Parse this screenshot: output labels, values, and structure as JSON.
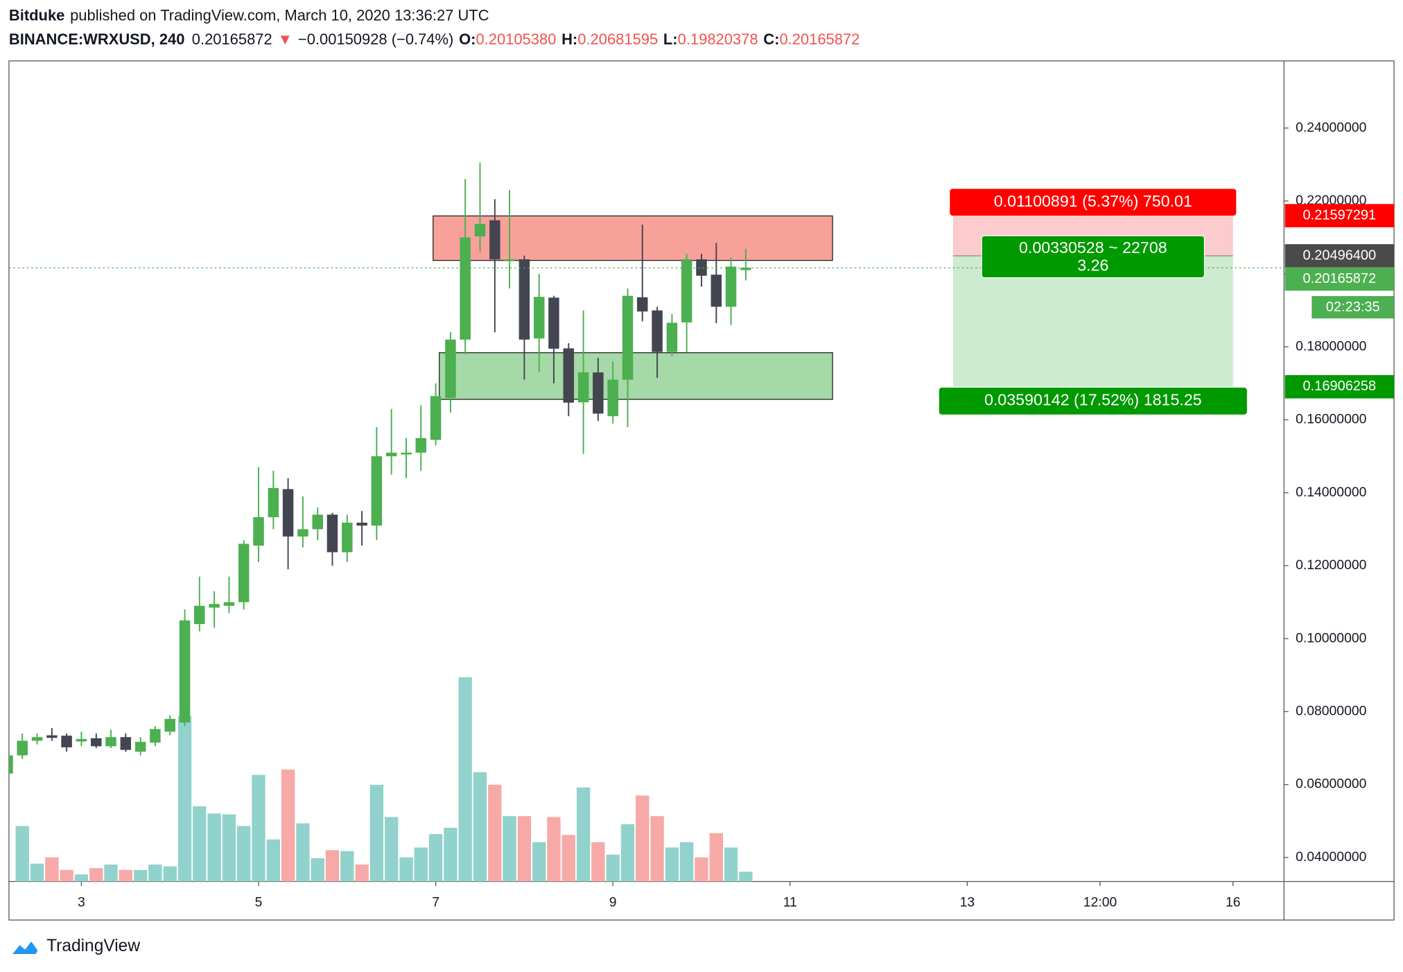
{
  "header": {
    "author": "Bitduke",
    "published": "published on TradingView.com, March 10, 2020 13:36:27 UTC",
    "symbol": "BINANCE:WRXUSD, 240",
    "last": "0.20165872",
    "arrow": "▼",
    "change": "−0.00150928 (−0.74%)",
    "ohlc": [
      {
        "label": "O:",
        "value": "0.20105380"
      },
      {
        "label": "H:",
        "value": "0.20681595"
      },
      {
        "label": "L:",
        "value": "0.19820378"
      },
      {
        "label": "C:",
        "value": "0.20165872"
      }
    ]
  },
  "chart_data": {
    "type": "candlestick",
    "up_color": "#4caf50",
    "down_color": "#434651",
    "volume_up_color": "#92d2cc",
    "volume_down_color": "#f7a9a7",
    "x": [
      2.167,
      2.333,
      2.5,
      2.667,
      2.833,
      3,
      3.167,
      3.333,
      3.5,
      3.667,
      3.833,
      4,
      4.167,
      4.333,
      4.5,
      4.667,
      4.833,
      5,
      5.167,
      5.333,
      5.5,
      5.667,
      5.833,
      6,
      6.167,
      6.333,
      6.5,
      6.667,
      6.833,
      7,
      7.167,
      7.333,
      7.5,
      7.667,
      7.833,
      8,
      8.167,
      8.333,
      8.5,
      8.667,
      8.833,
      9,
      9.167,
      9.333,
      9.5,
      9.667,
      9.833,
      10,
      10.167,
      10.333,
      10.5
    ],
    "open": [
      0.063,
      0.068,
      0.072,
      0.0735,
      0.0734,
      0.0718,
      0.0727,
      0.0705,
      0.073,
      0.069,
      0.0715,
      0.0745,
      0.077,
      0.104,
      0.1085,
      0.109,
      0.11,
      0.1255,
      0.1333,
      0.141,
      0.128,
      0.13,
      0.134,
      0.1237,
      0.1318,
      0.131,
      0.15,
      0.1505,
      0.151,
      0.1545,
      0.166,
      0.182,
      0.2103,
      0.2147,
      0.2035,
      0.204,
      0.1823,
      0.1935,
      0.1796,
      0.1648,
      0.173,
      0.161,
      0.171,
      0.1936,
      0.19,
      0.1786,
      0.1867,
      0.204,
      0.1998,
      0.191,
      0.2010538
    ],
    "high": [
      0.069,
      0.074,
      0.074,
      0.0755,
      0.074,
      0.0745,
      0.074,
      0.075,
      0.074,
      0.073,
      0.076,
      0.079,
      0.108,
      0.117,
      0.113,
      0.117,
      0.127,
      0.147,
      0.146,
      0.144,
      0.139,
      0.136,
      0.1345,
      0.134,
      0.135,
      0.158,
      0.163,
      0.155,
      0.164,
      0.17,
      0.184,
      0.226,
      0.2305,
      0.2205,
      0.223,
      0.205,
      0.2,
      0.194,
      0.181,
      0.19,
      0.177,
      0.176,
      0.196,
      0.2135,
      0.191,
      0.189,
      0.2055,
      0.2055,
      0.2085,
      0.2045,
      0.20681595
    ],
    "low": [
      0.062,
      0.067,
      0.071,
      0.072,
      0.069,
      0.0705,
      0.07,
      0.07,
      0.069,
      0.068,
      0.0705,
      0.0735,
      0.076,
      0.102,
      0.103,
      0.107,
      0.108,
      0.121,
      0.13,
      0.119,
      0.125,
      0.127,
      0.12,
      0.121,
      0.1255,
      0.127,
      0.145,
      0.144,
      0.146,
      0.153,
      0.162,
      0.178,
      0.206,
      0.184,
      0.196,
      0.171,
      0.173,
      0.17,
      0.161,
      0.1507,
      0.1597,
      0.159,
      0.158,
      0.187,
      0.1715,
      0.1775,
      0.1785,
      0.1965,
      0.1865,
      0.186,
      0.19820378
    ],
    "close": [
      0.068,
      0.072,
      0.073,
      0.0728,
      0.0702,
      0.0725,
      0.0705,
      0.073,
      0.0695,
      0.0717,
      0.0752,
      0.078,
      0.105,
      0.109,
      0.1095,
      0.11,
      0.126,
      0.1333,
      0.1413,
      0.128,
      0.13,
      0.134,
      0.1237,
      0.1318,
      0.131,
      0.15,
      0.151,
      0.151,
      0.155,
      0.1665,
      0.182,
      0.21,
      0.2137,
      0.204,
      0.204,
      0.182,
      0.1937,
      0.1795,
      0.1647,
      0.173,
      0.1617,
      0.171,
      0.194,
      0.1897,
      0.1786,
      0.1866,
      0.204,
      0.1995,
      0.191,
      0.202,
      0.20165872
    ],
    "volume": [
      null,
      62,
      20,
      27,
      13,
      8,
      15,
      19,
      13,
      13,
      19,
      17,
      185,
      84,
      76,
      75,
      62,
      119,
      47,
      125,
      65,
      26,
      35,
      34,
      19,
      108,
      72,
      27,
      38,
      53,
      60,
      228,
      122,
      108,
      73,
      73,
      44,
      72,
      52,
      105,
      44,
      30,
      64,
      96,
      73,
      38,
      44,
      27,
      54,
      38,
      11
    ],
    "xlim": [
      2.182,
      16.576
    ],
    "xticks": [
      3,
      5,
      7,
      9,
      11,
      13,
      {
        "value": 14.5,
        "label": "12:00"
      },
      16
    ],
    "ylim": [
      0.0334,
      0.2584
    ],
    "yticks": [
      {
        "value": 0.04,
        "label": "0.04000000"
      },
      {
        "value": 0.06,
        "label": "0.06000000"
      },
      {
        "value": 0.08,
        "label": "0.08000000"
      },
      {
        "value": 0.1,
        "label": "0.10000000"
      },
      {
        "value": 0.12,
        "label": "0.12000000"
      },
      {
        "value": 0.14,
        "label": "0.14000000"
      },
      {
        "value": 0.16,
        "label": "0.16000000"
      },
      {
        "value": 0.18,
        "label": "0.18000000"
      },
      {
        "value": 0.2,
        "label": "0.20000000"
      },
      {
        "value": 0.22,
        "label": "0.22000000"
      },
      {
        "value": 0.24,
        "label": "0.24000000"
      }
    ],
    "zones": [
      {
        "x": [
          6.97,
          11.48
        ],
        "y": [
          0.2037,
          0.2159
        ],
        "color": "#f7a19a"
      },
      {
        "x": [
          7.04,
          11.48
        ],
        "y": [
          0.1656,
          0.1784
        ],
        "color": "#a5d9a7"
      }
    ],
    "position": {
      "x": [
        12.84,
        16
      ],
      "stop": 0.21597291,
      "entry": 0.204964,
      "target": 0.16906258,
      "stop_label": "0.01100891 (5.37%) 750.01",
      "center_label": "0.00330528 ~ 22708",
      "ratio": "3.26",
      "target_label": "0.03590142 (17.52%) 1815.25"
    },
    "axis_labels": [
      {
        "value": 0.21597291,
        "label": "0.21597291",
        "color": "#ff0000"
      },
      {
        "value": 0.204964,
        "label": "0.20496400",
        "color": "#4a4a4a"
      },
      {
        "value": 0.20165872,
        "label": "0.20165872",
        "color": "#4caf50"
      },
      {
        "value": 0.16906258,
        "label": "0.16906258",
        "color": "#009900"
      }
    ],
    "countdown": "02:23:35"
  },
  "footer": {
    "brand": "TradingView"
  }
}
